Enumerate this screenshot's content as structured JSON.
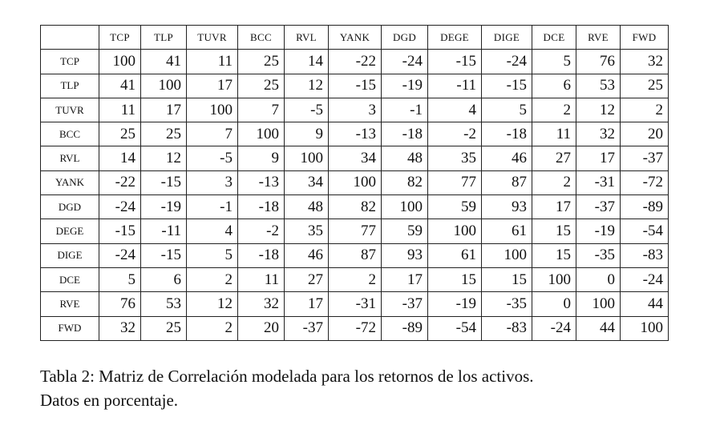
{
  "table": {
    "columns": [
      "TCP",
      "TLP",
      "TUVR",
      "BCC",
      "RVL",
      "YANK",
      "DGD",
      "DEGE",
      "DIGE",
      "DCE",
      "RVE",
      "FWD"
    ],
    "row_labels": [
      "TCP",
      "TLP",
      "TUVR",
      "BCC",
      "RVL",
      "YANK",
      "DGD",
      "DEGE",
      "DIGE",
      "DCE",
      "RVE",
      "FWD"
    ],
    "rows": [
      [
        100,
        41,
        11,
        25,
        14,
        -22,
        -24,
        -15,
        -24,
        5,
        76,
        32
      ],
      [
        41,
        100,
        17,
        25,
        12,
        -15,
        -19,
        -11,
        -15,
        6,
        53,
        25
      ],
      [
        11,
        17,
        100,
        7,
        -5,
        3,
        -1,
        4,
        5,
        2,
        12,
        2
      ],
      [
        25,
        25,
        7,
        100,
        9,
        -13,
        -18,
        -2,
        -18,
        11,
        32,
        20
      ],
      [
        14,
        12,
        -5,
        9,
        100,
        34,
        48,
        35,
        46,
        27,
        17,
        -37
      ],
      [
        -22,
        -15,
        3,
        -13,
        34,
        100,
        82,
        77,
        87,
        2,
        -31,
        -72
      ],
      [
        -24,
        -19,
        -1,
        -18,
        48,
        82,
        100,
        59,
        93,
        17,
        -37,
        -89
      ],
      [
        -15,
        -11,
        4,
        -2,
        35,
        77,
        59,
        100,
        61,
        15,
        -19,
        -54
      ],
      [
        -24,
        -15,
        5,
        -18,
        46,
        87,
        93,
        61,
        100,
        15,
        -35,
        -83
      ],
      [
        5,
        6,
        2,
        11,
        27,
        2,
        17,
        15,
        15,
        100,
        0,
        -24
      ],
      [
        76,
        53,
        12,
        32,
        17,
        -31,
        -37,
        -19,
        -35,
        0,
        100,
        44
      ],
      [
        32,
        25,
        2,
        20,
        -37,
        -72,
        -89,
        -54,
        -83,
        -24,
        44,
        100
      ]
    ]
  },
  "caption": {
    "lines": [
      "Tabla 2: Matriz de Correlación modelada para los retornos de los activos.",
      "Datos en porcentaje."
    ]
  }
}
